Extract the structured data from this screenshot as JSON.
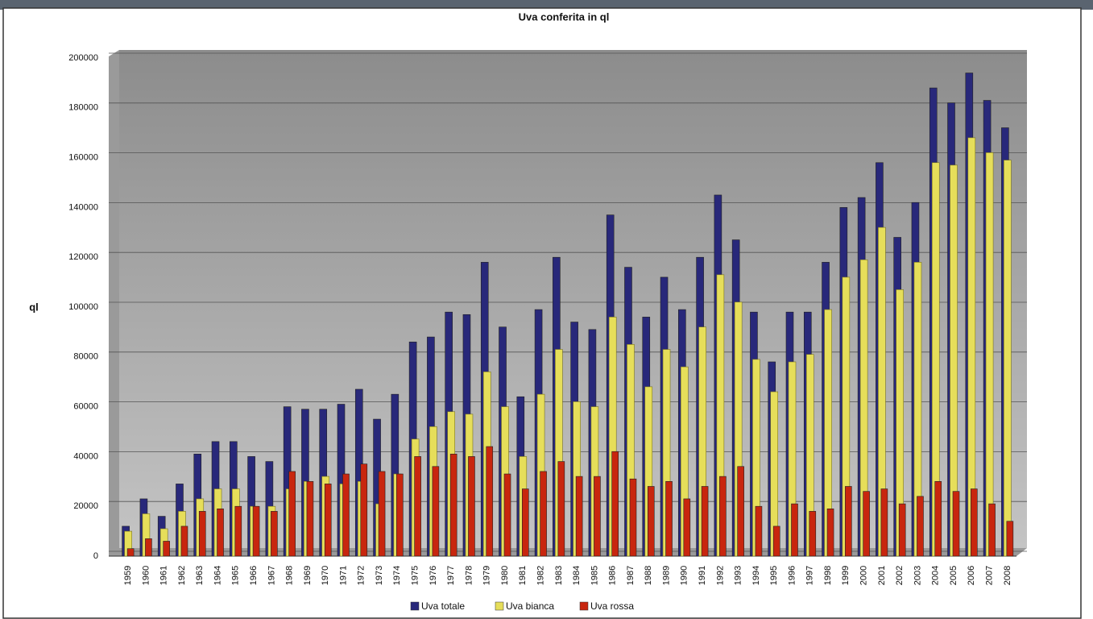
{
  "chart_data": {
    "type": "bar",
    "title": "Uva conferita in ql",
    "y_label": "ql",
    "categories": [
      "1959",
      "1960",
      "1961",
      "1962",
      "1963",
      "1964",
      "1965",
      "1966",
      "1967",
      "1968",
      "1969",
      "1970",
      "1971",
      "1972",
      "1973",
      "1974",
      "1975",
      "1976",
      "1977",
      "1978",
      "1979",
      "1980",
      "1981",
      "1982",
      "1983",
      "1984",
      "1985",
      "1986",
      "1987",
      "1988",
      "1989",
      "1990",
      "1991",
      "1992",
      "1993",
      "1994",
      "1995",
      "1996",
      "1997",
      "1998",
      "1999",
      "2000",
      "2001",
      "2002",
      "2003",
      "2004",
      "2005",
      "2006",
      "2007",
      "2008"
    ],
    "series": [
      {
        "name": "Uva totale",
        "color": "#28287a",
        "values": [
          12000,
          23000,
          16000,
          29000,
          41000,
          46000,
          46000,
          40000,
          38000,
          60000,
          59000,
          59000,
          61000,
          67000,
          55000,
          65000,
          86000,
          88000,
          98000,
          97000,
          118000,
          92000,
          64000,
          99000,
          120000,
          94000,
          91000,
          137000,
          116000,
          96000,
          112000,
          99000,
          120000,
          145000,
          127000,
          98000,
          78000,
          98000,
          98000,
          118000,
          140000,
          144000,
          158000,
          128000,
          142000,
          188000,
          182000,
          194000,
          183000,
          172000
        ]
      },
      {
        "name": "Uva bianca",
        "color": "#e6de5a",
        "values": [
          10000,
          17000,
          11000,
          18000,
          23000,
          27000,
          27000,
          20000,
          20000,
          27000,
          30000,
          32000,
          29000,
          30000,
          21000,
          33000,
          47000,
          52000,
          58000,
          57000,
          74000,
          60000,
          40000,
          65000,
          83000,
          62000,
          60000,
          96000,
          85000,
          68000,
          83000,
          76000,
          92000,
          113000,
          102000,
          79000,
          66000,
          78000,
          81000,
          99000,
          112000,
          119000,
          132000,
          107000,
          118000,
          158000,
          157000,
          168000,
          162000,
          159000
        ]
      },
      {
        "name": "Uva rossa",
        "color": "#c8260e",
        "values": [
          3000,
          7000,
          6000,
          12000,
          18000,
          19000,
          20000,
          20000,
          18000,
          34000,
          30000,
          29000,
          33000,
          37000,
          34000,
          33000,
          40000,
          36000,
          41000,
          40000,
          44000,
          33000,
          27000,
          34000,
          38000,
          32000,
          32000,
          42000,
          31000,
          28000,
          30000,
          23000,
          28000,
          32000,
          36000,
          20000,
          12000,
          21000,
          18000,
          19000,
          28000,
          26000,
          27000,
          21000,
          24000,
          30000,
          26000,
          27000,
          21000,
          14000
        ]
      }
    ],
    "ylim": [
      0,
      200000
    ],
    "yticks": [
      0,
      20000,
      40000,
      60000,
      80000,
      100000,
      120000,
      140000,
      160000,
      180000,
      200000
    ],
    "grid": true,
    "legend": "bottom"
  }
}
